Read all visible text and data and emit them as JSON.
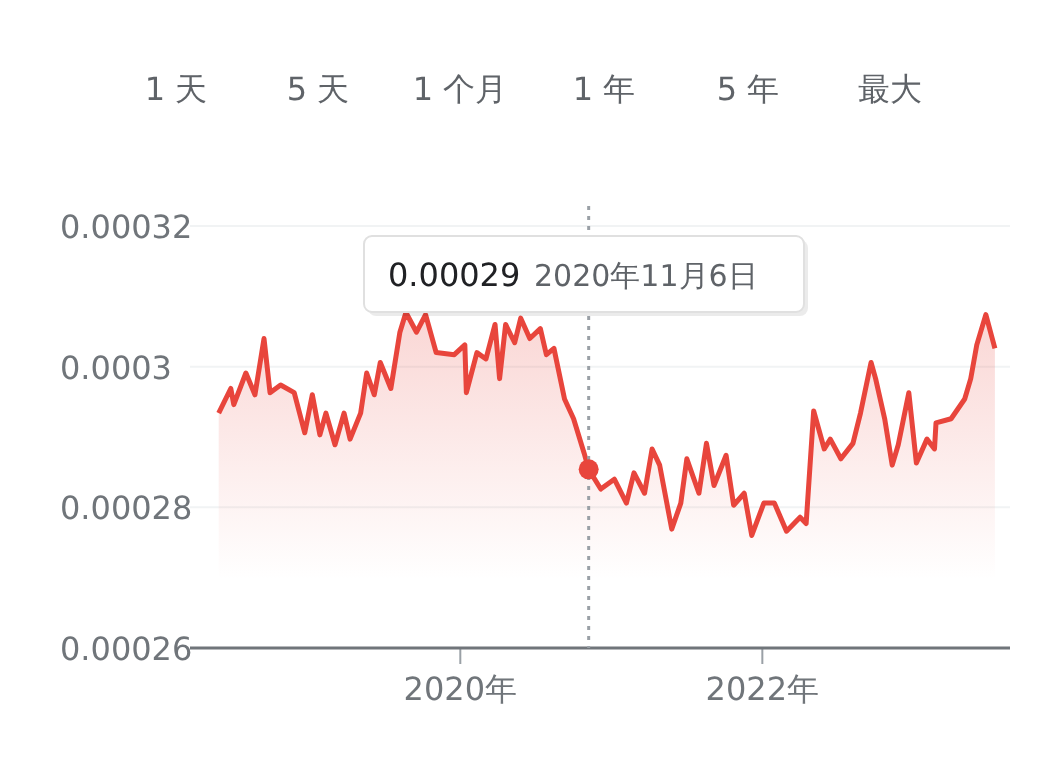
{
  "chart_data": {
    "type": "area",
    "color": "#e8453c",
    "x": [
      2018.4,
      2018.48,
      2018.5,
      2018.58,
      2018.64,
      2018.7,
      2018.74,
      2018.81,
      2018.9,
      2018.97,
      2019.02,
      2019.07,
      2019.11,
      2019.17,
      2019.23,
      2019.27,
      2019.34,
      2019.38,
      2019.43,
      2019.47,
      2019.54,
      2019.6,
      2019.64,
      2019.71,
      2019.77,
      2019.84,
      2019.96,
      2020.03,
      2020.04,
      2020.11,
      2020.17,
      2020.23,
      2020.26,
      2020.3,
      2020.36,
      2020.4,
      2020.46,
      2020.53,
      2020.57,
      2020.62,
      2020.69,
      2020.75,
      2020.82,
      2020.85,
      2020.93,
      2021.02,
      2021.1,
      2021.15,
      2021.22,
      2021.27,
      2021.32,
      2021.4,
      2021.46,
      2021.5,
      2021.58,
      2021.63,
      2021.68,
      2021.76,
      2021.81,
      2021.88,
      2021.93,
      2022.01,
      2022.08,
      2022.16,
      2022.25,
      2022.29,
      2022.34,
      2022.41,
      2022.45,
      2022.52,
      2022.6,
      2022.65,
      2022.72,
      2022.75,
      2022.81,
      2022.86,
      2022.9,
      2022.97,
      2023.02,
      2023.09,
      2023.14,
      2023.15,
      2023.25,
      2023.34,
      2023.38,
      2023.42,
      2023.48,
      2023.54
    ],
    "values": [
      0.0002934,
      0.0002969,
      0.0002946,
      0.0002991,
      0.000296,
      0.000304,
      0.0002963,
      0.0002974,
      0.0002963,
      0.0002906,
      0.000296,
      0.0002903,
      0.0002934,
      0.0002889,
      0.0002934,
      0.0002897,
      0.0002934,
      0.0002991,
      0.000296,
      0.0003006,
      0.0002969,
      0.0003049,
      0.0003077,
      0.0003049,
      0.0003074,
      0.000302,
      0.0003017,
      0.0003031,
      0.0002963,
      0.000302,
      0.0003011,
      0.000306,
      0.0002983,
      0.000306,
      0.0003034,
      0.0003069,
      0.000304,
      0.0003054,
      0.0003017,
      0.0003026,
      0.0002954,
      0.0002926,
      0.0002877,
      0.0002854,
      0.0002826,
      0.000284,
      0.0002806,
      0.0002849,
      0.000282,
      0.0002883,
      0.000286,
      0.0002769,
      0.0002806,
      0.0002869,
      0.000282,
      0.0002891,
      0.0002831,
      0.0002874,
      0.0002803,
      0.000282,
      0.000276,
      0.0002806,
      0.0002806,
      0.0002766,
      0.0002786,
      0.0002777,
      0.0002937,
      0.0002883,
      0.0002897,
      0.0002869,
      0.0002891,
      0.0002934,
      0.0003006,
      0.0002983,
      0.0002926,
      0.000286,
      0.0002889,
      0.0002963,
      0.0002863,
      0.0002897,
      0.0002883,
      0.000292,
      0.0002926,
      0.0002954,
      0.0002983,
      0.0003031,
      0.0003074,
      0.0003026
    ],
    "xlim": [
      2018.21,
      2023.64
    ],
    "ylim": [
      0.00026,
      0.00032
    ],
    "xticks": [
      {
        "value": 2020,
        "label": "2020年"
      },
      {
        "value": 2022,
        "label": "2022年"
      }
    ],
    "yticks": [
      0.00026,
      0.00028,
      0.0003,
      0.00032
    ],
    "grid": "y",
    "ref_lines": [
      {
        "axis": "x",
        "value": 2020.85,
        "line_style": "dotted",
        "color": "#9aa0a6"
      }
    ],
    "annotations": [
      "1 天",
      "5 天",
      "1 个月",
      "1 年",
      "5 年",
      "最大",
      "0.00029",
      "2020年11月6日"
    ]
  }
}
